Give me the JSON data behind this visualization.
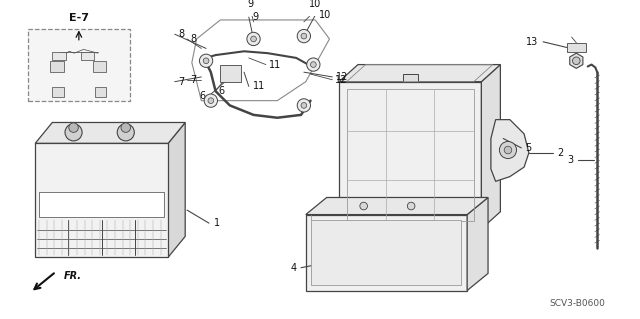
{
  "bg_color": "#ffffff",
  "line_color": "#444444",
  "text_color": "#111111",
  "diagram_code": "SCV3-B0600",
  "ref_label": "E-7",
  "fr_label": "FR."
}
